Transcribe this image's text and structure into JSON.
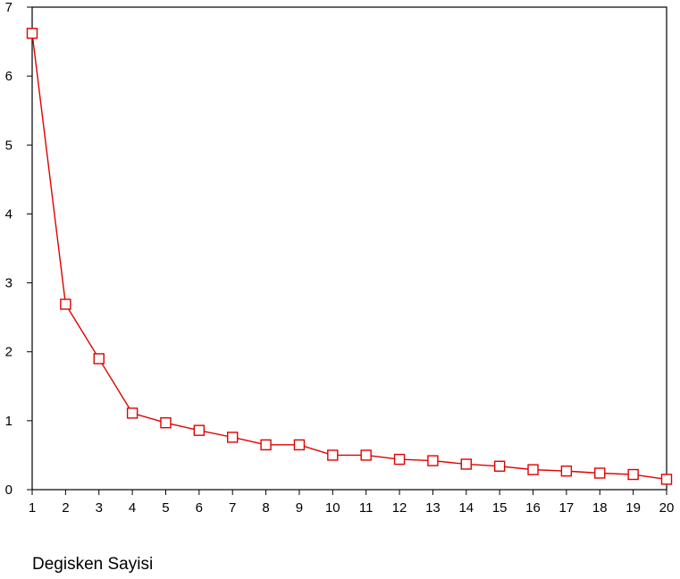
{
  "chart_data": {
    "type": "line",
    "title": "",
    "xlabel": "Degisken Sayisi",
    "ylabel": "",
    "x": [
      1,
      2,
      3,
      4,
      5,
      6,
      7,
      8,
      9,
      10,
      11,
      12,
      13,
      14,
      15,
      16,
      17,
      18,
      19,
      20
    ],
    "series": [
      {
        "values": [
          6.62,
          2.69,
          1.9,
          1.11,
          0.97,
          0.86,
          0.76,
          0.65,
          0.65,
          0.5,
          0.5,
          0.44,
          0.42,
          0.37,
          0.34,
          0.29,
          0.27,
          0.24,
          0.22,
          0.15
        ],
        "color": "#e00000",
        "marker": "square"
      }
    ],
    "xlim": [
      1,
      20
    ],
    "ylim": [
      0,
      7
    ],
    "x_ticks": [
      "1",
      "2",
      "3",
      "4",
      "5",
      "6",
      "7",
      "8",
      "9",
      "10",
      "11",
      "12",
      "13",
      "14",
      "15",
      "16",
      "17",
      "18",
      "19",
      "20"
    ],
    "y_ticks": [
      "0",
      "1",
      "2",
      "3",
      "4",
      "5",
      "6",
      "7"
    ],
    "grid": false,
    "legend": "none"
  }
}
